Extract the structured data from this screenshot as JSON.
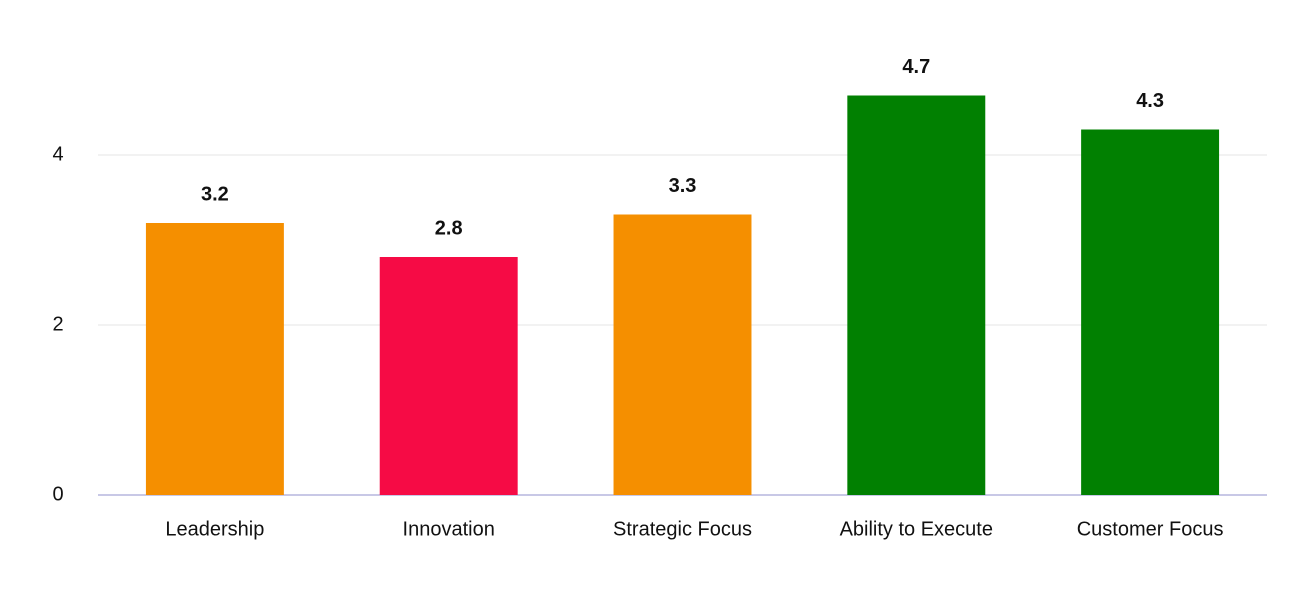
{
  "chart_data": {
    "type": "bar",
    "categories": [
      "Leadership",
      "Innovation",
      "Strategic Focus",
      "Ability to Execute",
      "Customer Focus"
    ],
    "values": [
      3.2,
      2.8,
      3.3,
      4.7,
      4.3
    ],
    "colors": [
      "#f58f00",
      "#f60b45",
      "#f58f00",
      "#018001",
      "#018001"
    ],
    "ylim": [
      0,
      5
    ],
    "yticks": [
      0,
      2,
      4
    ],
    "grid": true
  }
}
